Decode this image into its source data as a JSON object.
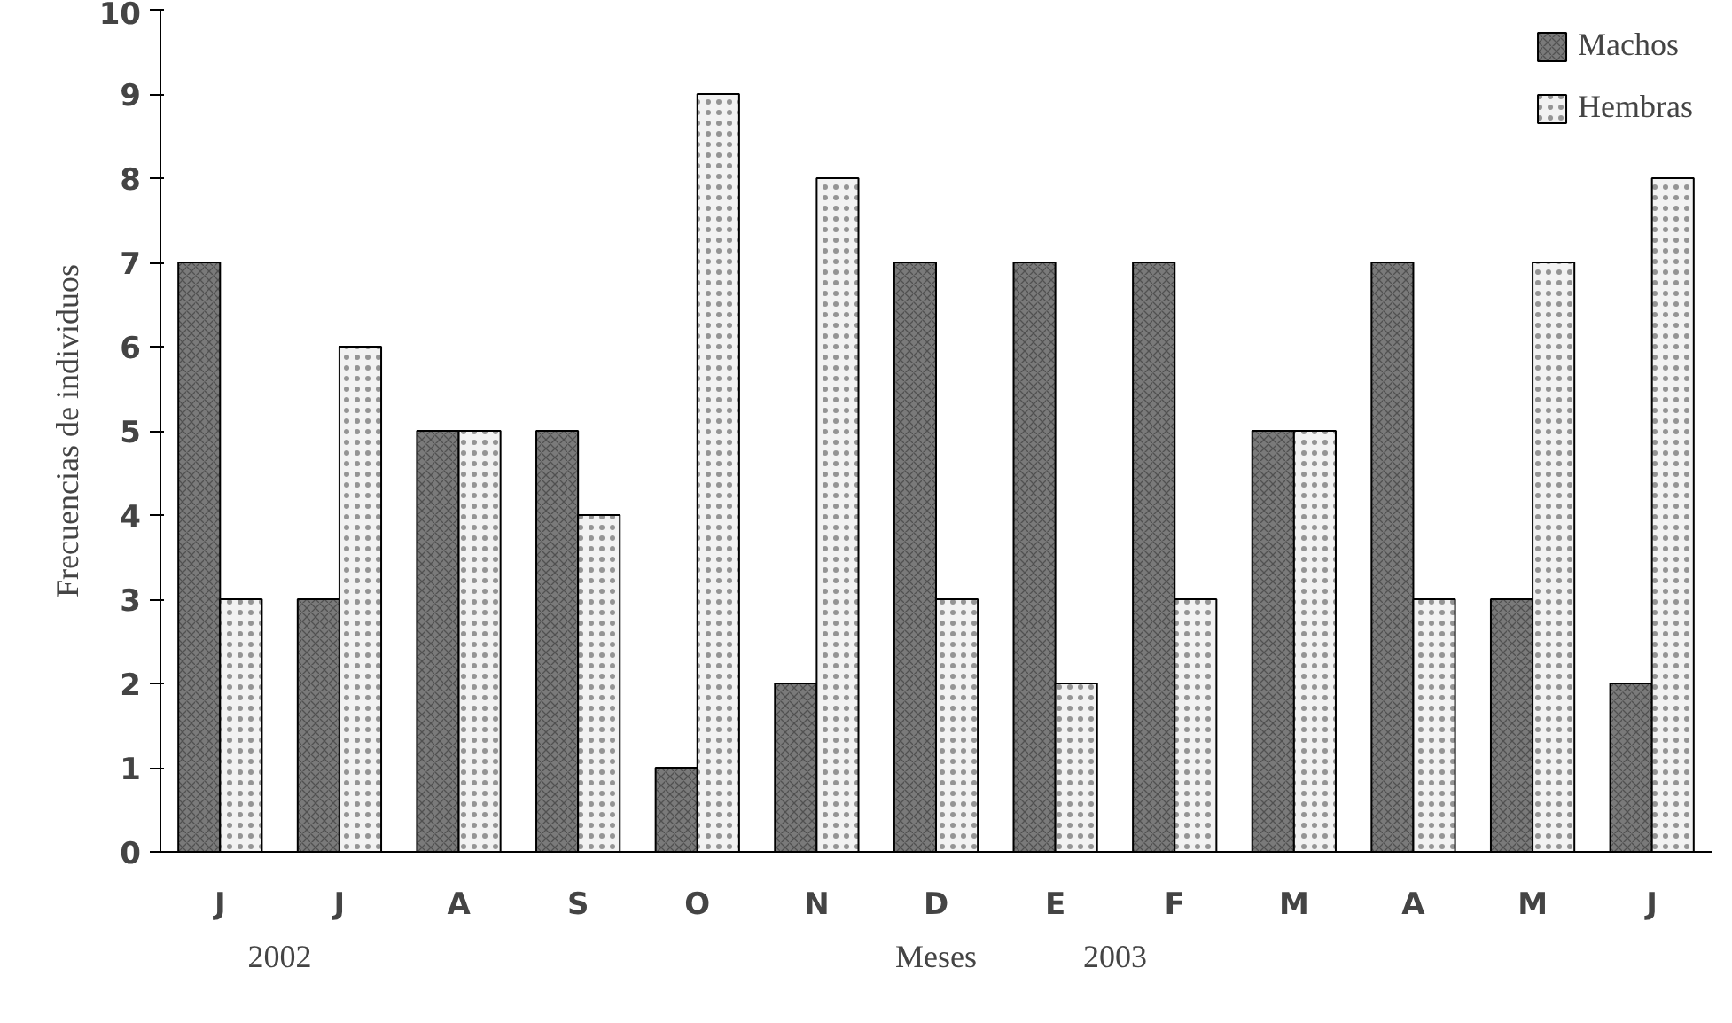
{
  "chart_data": {
    "type": "bar",
    "categories": [
      "J",
      "J",
      "A",
      "S",
      "O",
      "N",
      "D",
      "E",
      "F",
      "M",
      "A",
      "M",
      "J"
    ],
    "series": [
      {
        "name": "Machos",
        "color": "#7a7a7a",
        "values": [
          7,
          3,
          5,
          5,
          1,
          2,
          7,
          7,
          7,
          5,
          7,
          3,
          2
        ]
      },
      {
        "name": "Hembras",
        "color": "#f2f2f2",
        "values": [
          3,
          6,
          5,
          4,
          9,
          8,
          3,
          2,
          3,
          5,
          3,
          7,
          8
        ]
      }
    ],
    "ylim": [
      0,
      10
    ],
    "yticks": [
      0,
      1,
      2,
      3,
      4,
      5,
      6,
      7,
      8,
      9,
      10
    ],
    "ylabel": "Frecuencias de individuos",
    "xlabel": "Meses",
    "annotations": [
      "2002",
      "2003"
    ],
    "legend": "top right",
    "grid": false
  }
}
